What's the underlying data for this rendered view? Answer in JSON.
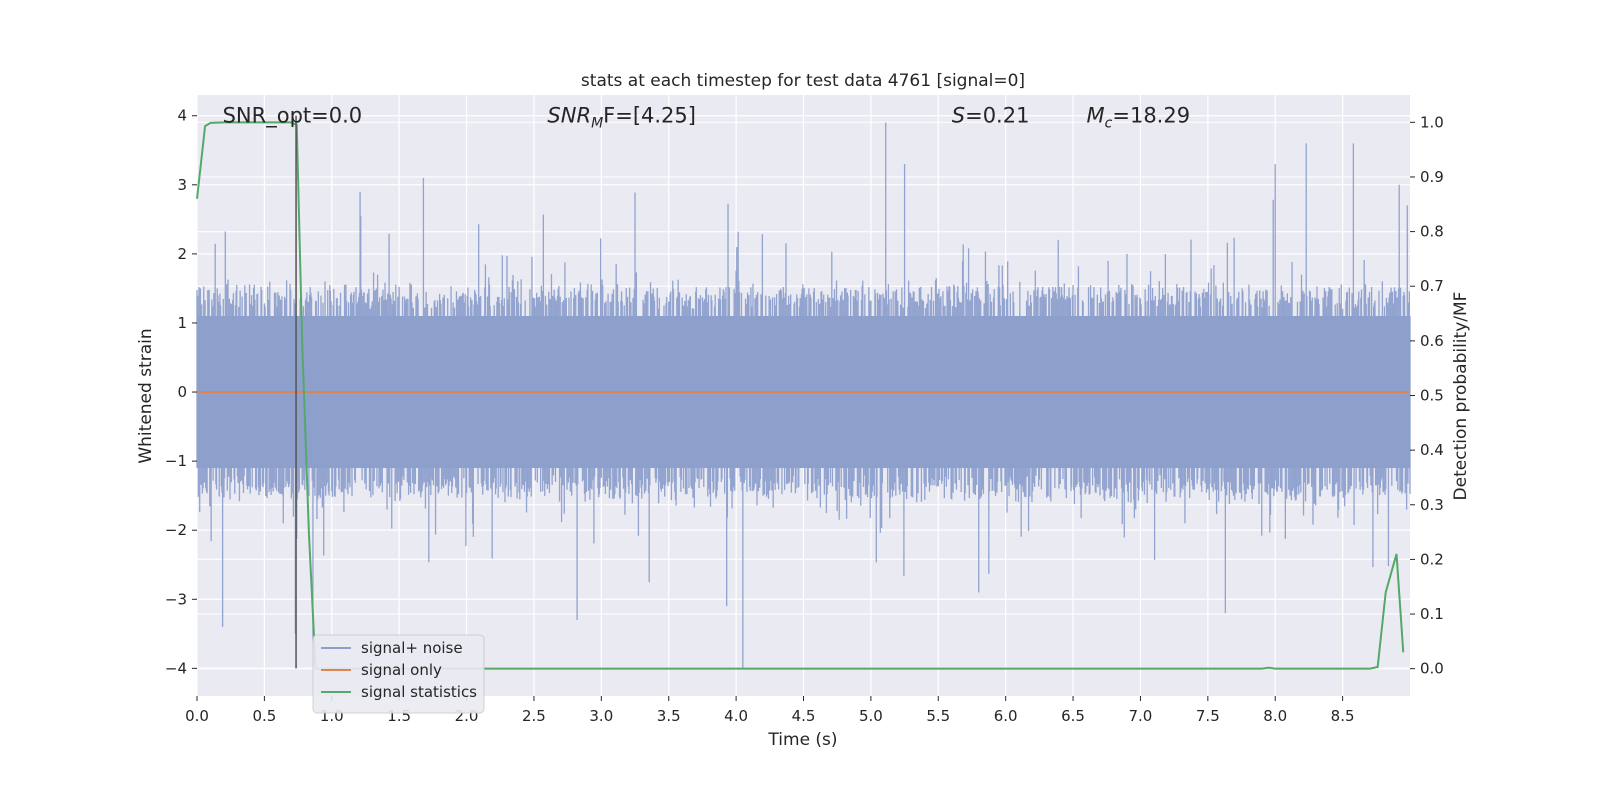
{
  "chart_data": {
    "type": "line",
    "title": "stats at each timestep for test data 4761 [signal=0]",
    "xlabel": "Time (s)",
    "ylabel": "Whitened strain",
    "y2label": "Detection probability/MF",
    "xlim": [
      0.0,
      9.0
    ],
    "ylim": [
      -4.4,
      4.3
    ],
    "y2lim": [
      -0.05,
      1.05
    ],
    "grid": true,
    "legend_position": "bottom-left",
    "x_ticks": [
      0.0,
      0.5,
      1.0,
      1.5,
      2.0,
      2.5,
      3.0,
      3.5,
      4.0,
      4.5,
      5.0,
      5.5,
      6.0,
      6.5,
      7.0,
      7.5,
      8.0,
      8.5
    ],
    "x_tick_labels": [
      "0.0",
      "0.5",
      "1.0",
      "1.5",
      "2.0",
      "2.5",
      "3.0",
      "3.5",
      "4.0",
      "4.5",
      "5.0",
      "5.5",
      "6.0",
      "6.5",
      "7.0",
      "7.5",
      "8.0",
      "8.5"
    ],
    "y_ticks": [
      -4,
      -3,
      -2,
      -1,
      0,
      1,
      2,
      3,
      4
    ],
    "y_tick_labels": [
      "−4",
      "−3",
      "−2",
      "−1",
      "0",
      "1",
      "2",
      "3",
      "4"
    ],
    "y2_ticks": [
      0.0,
      0.1,
      0.2,
      0.3,
      0.4,
      0.5,
      0.6,
      0.7,
      0.8,
      0.9,
      1.0
    ],
    "y2_tick_labels": [
      "0.0",
      "0.1",
      "0.2",
      "0.3",
      "0.4",
      "0.5",
      "0.6",
      "0.7",
      "0.8",
      "0.9",
      "1.0"
    ],
    "annotations": [
      {
        "text": "SNR_opt=0.0",
        "x": 0.19,
        "y": 4.0
      },
      {
        "text": "SNR",
        "sub": "M",
        "suffix": "F=[4.25]",
        "italic": true,
        "x": 2.6,
        "y": 4.0
      },
      {
        "text": "S",
        "suffix": "=0.21",
        "italic": true,
        "x": 5.6,
        "y": 4.0
      },
      {
        "text": "M",
        "sub": "c",
        "suffix": "=18.29",
        "italic": true,
        "x": 6.6,
        "y": 4.0
      }
    ],
    "series": [
      {
        "name": "signal+ noise",
        "color": "#8c9fcb",
        "axis": "left",
        "style": "noise",
        "sample_rate_hz": 200,
        "amplitude_std": 1.0,
        "envelope_hi": 1.3,
        "envelope_lo": -1.3,
        "spikes": [
          {
            "x": 0.19,
            "y": -3.4
          },
          {
            "x": 0.73,
            "y": -3.5
          },
          {
            "x": 0.86,
            "y": -3.6
          },
          {
            "x": 1.21,
            "y": 2.9
          },
          {
            "x": 1.68,
            "y": 3.1
          },
          {
            "x": 2.82,
            "y": -3.3
          },
          {
            "x": 3.93,
            "y": -3.1
          },
          {
            "x": 4.05,
            "y": -4.0
          },
          {
            "x": 5.11,
            "y": 3.9
          },
          {
            "x": 5.25,
            "y": 3.3
          },
          {
            "x": 5.8,
            "y": -2.9
          },
          {
            "x": 7.63,
            "y": -3.2
          },
          {
            "x": 8.0,
            "y": 3.3
          },
          {
            "x": 8.23,
            "y": 3.6
          },
          {
            "x": 8.58,
            "y": 3.6
          },
          {
            "x": 8.92,
            "y": 3.0
          },
          {
            "x": 8.98,
            "y": 2.7
          }
        ]
      },
      {
        "name": "signal only",
        "color": "#dd8452",
        "axis": "left",
        "x": [
          0.0,
          9.0
        ],
        "y": [
          0.0,
          0.0
        ]
      },
      {
        "name": "signal statistics",
        "color": "#55a868",
        "axis": "right",
        "x": [
          0.0,
          0.06,
          0.1,
          0.2,
          0.4,
          0.6,
          0.7,
          0.74,
          0.78,
          0.83,
          0.88,
          1.0,
          2.0,
          4.0,
          6.0,
          7.0,
          7.9,
          7.95,
          8.0,
          8.5,
          8.7,
          8.76,
          8.82,
          8.9,
          8.95
        ],
        "y": [
          0.86,
          0.993,
          0.999,
          1.0,
          1.0,
          1.0,
          1.0,
          0.995,
          0.6,
          0.25,
          0.0,
          0.0,
          0.0,
          0.0,
          0.0,
          0.0,
          0.0,
          0.002,
          0.0,
          0.0,
          0.0,
          0.003,
          0.14,
          0.21,
          0.03
        ]
      },
      {
        "name": "marker",
        "color": "#555555",
        "axis": "left",
        "legend": false,
        "x": [
          0.735,
          0.735
        ],
        "y": [
          -4.0,
          4.0
        ]
      }
    ]
  }
}
